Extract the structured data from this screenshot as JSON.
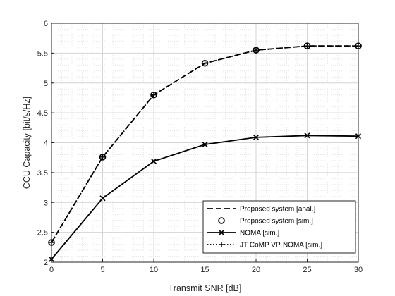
{
  "chart_data": {
    "type": "line",
    "xlabel": "Transmit SNR [dB]",
    "ylabel": "CCU Capacity [bit/s/Hz]",
    "xlim": [
      0,
      30
    ],
    "ylim": [
      2,
      6
    ],
    "xticks": [
      0,
      5,
      10,
      15,
      20,
      25,
      30
    ],
    "yticks": [
      2,
      2.5,
      3,
      3.5,
      4,
      4.5,
      5,
      5.5,
      6
    ],
    "x": [
      0,
      5,
      10,
      15,
      20,
      25,
      30
    ],
    "grid": "major and minor",
    "legend_position": "bottom-right",
    "series": [
      {
        "name": "Proposed system [anal.]",
        "line": "dashed",
        "marker": "none",
        "color": "#000000",
        "values": [
          2.33,
          3.76,
          4.8,
          5.33,
          5.55,
          5.62,
          5.62
        ]
      },
      {
        "name": "Proposed system [sim.]",
        "line": "none",
        "marker": "circle",
        "color": "#000000",
        "values": [
          2.33,
          3.76,
          4.8,
          5.33,
          5.55,
          5.62,
          5.62
        ]
      },
      {
        "name": "NOMA [sim.]",
        "line": "solid",
        "marker": "x",
        "color": "#000000",
        "values": [
          2.05,
          3.07,
          3.69,
          3.97,
          4.09,
          4.12,
          4.11
        ]
      },
      {
        "name": "JT-CoMP VP-NOMA [sim.]",
        "line": "dotted",
        "marker": "plus",
        "color": "#000000",
        "values": [
          2.33,
          3.76,
          4.8,
          5.33,
          5.55,
          5.62,
          5.62
        ]
      }
    ]
  }
}
